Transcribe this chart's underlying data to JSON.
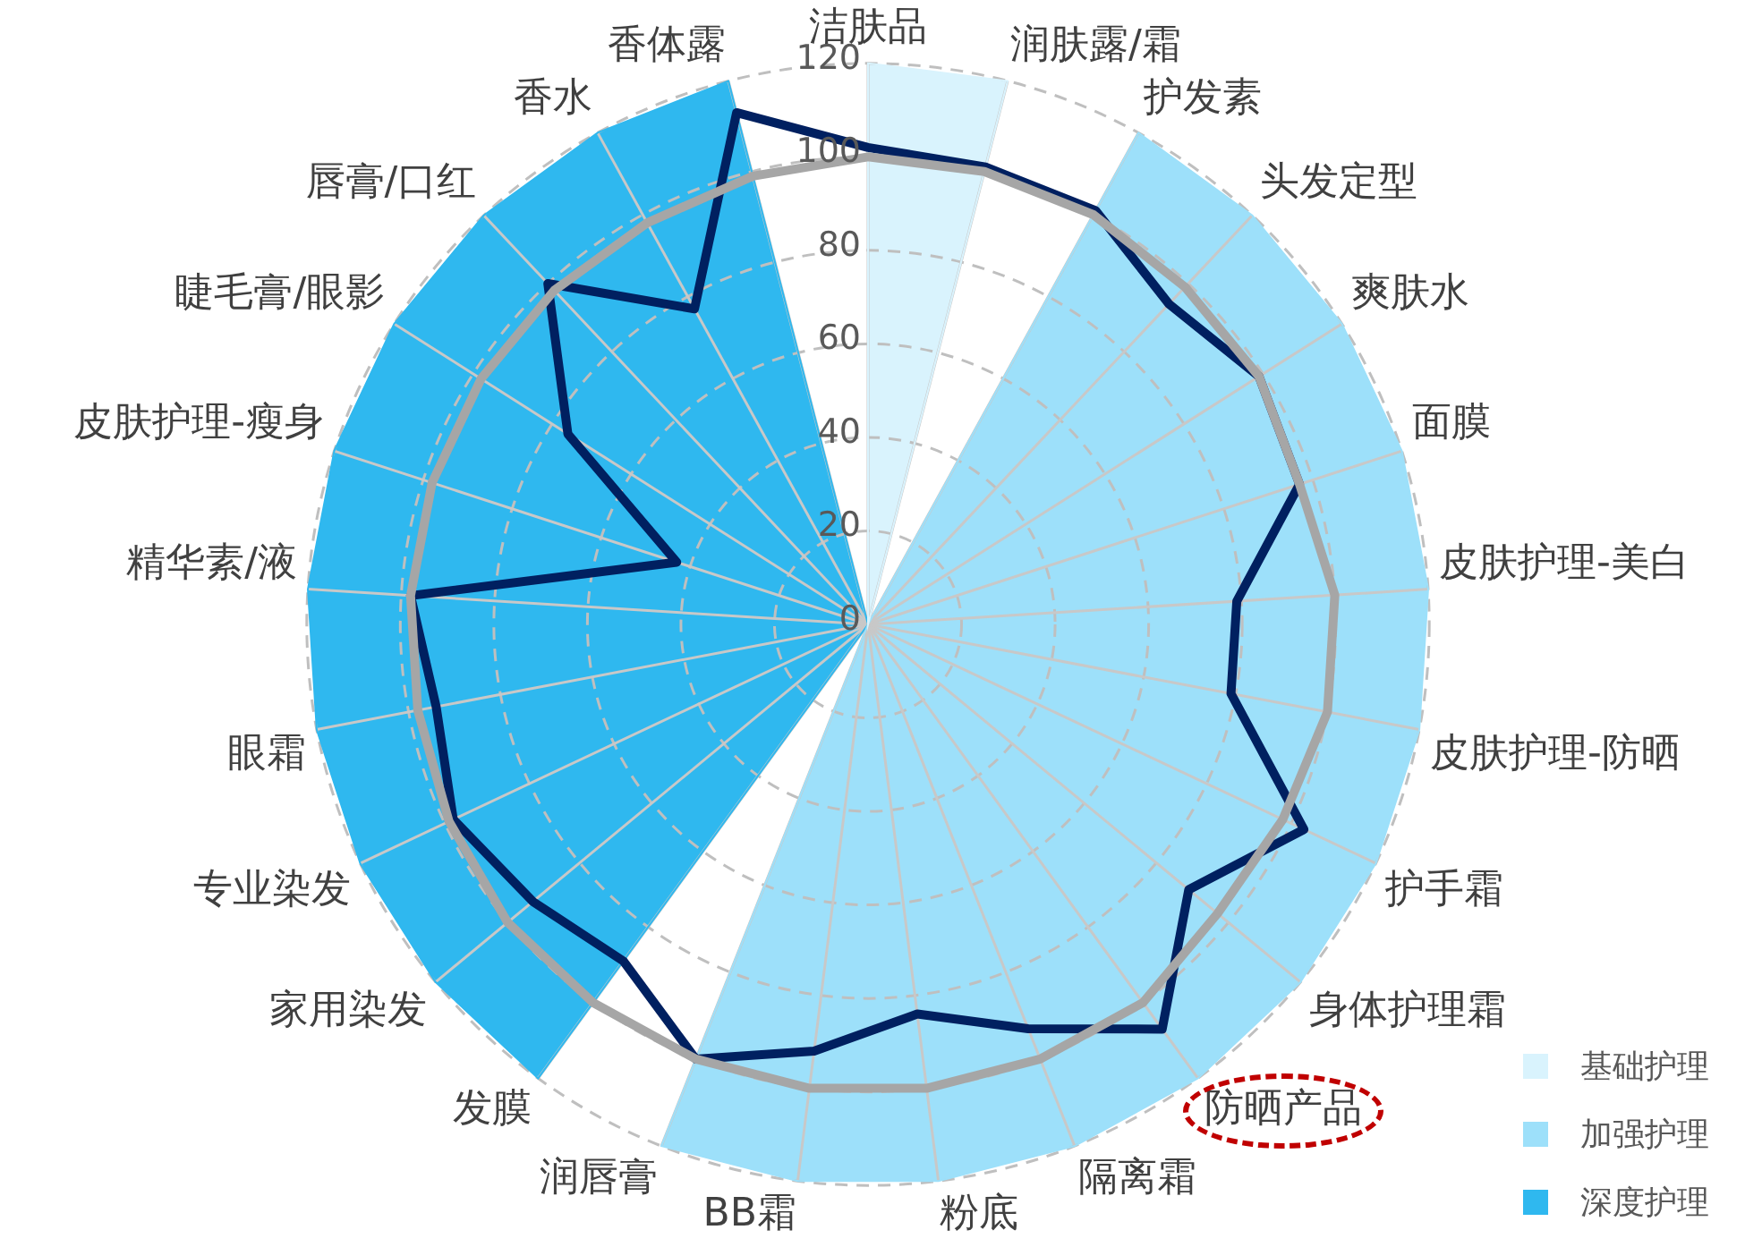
{
  "chart_data": {
    "type": "radar",
    "categories": [
      "洁肤品",
      "润肤露/霜",
      "护发素",
      "头发定型",
      "爽肤水",
      "面膜",
      "皮肤护理-美白",
      "皮肤护理-防晒",
      "护手霜",
      "身体护理霜",
      "防晒产品",
      "隔离霜",
      "粉底",
      "BB霜",
      "润唇膏",
      "发膜",
      "家用染发",
      "专业染发",
      "眼霜",
      "精华素/液",
      "皮肤护理-瘦身",
      "睫毛膏/眼影",
      "唇膏/口红",
      "香水",
      "香体露"
    ],
    "series": [
      {
        "name": "基础护理",
        "color": "#d9f3fd",
        "values": [
          120,
          120,
          0,
          0,
          0,
          0,
          0,
          0,
          0,
          0,
          0,
          0,
          0,
          0,
          0,
          0,
          0,
          0,
          0,
          0,
          0,
          0,
          0,
          0,
          0
        ]
      },
      {
        "name": "加强护理",
        "color": "#9de0fa",
        "values": [
          0,
          0,
          120,
          120,
          120,
          120,
          120,
          120,
          120,
          120,
          120,
          120,
          120,
          120,
          120,
          0,
          0,
          0,
          0,
          0,
          0,
          0,
          0,
          0,
          0
        ]
      },
      {
        "name": "深度护理",
        "color": "#2fb8ef",
        "values": [
          0,
          0,
          0,
          0,
          0,
          0,
          0,
          0,
          0,
          0,
          0,
          0,
          0,
          0,
          0,
          120,
          120,
          120,
          120,
          120,
          120,
          120,
          120,
          120,
          120
        ]
      },
      {
        "line_style": "solid",
        "color": "#a6a6a6",
        "values": [
          100,
          100,
          100,
          99,
          99,
          97,
          100,
          100,
          98,
          97,
          100,
          100,
          100,
          100,
          100,
          100,
          100,
          99,
          98,
          98,
          98,
          98,
          98,
          98,
          99
        ]
      },
      {
        "line_style": "solid",
        "color": "#002060",
        "values": [
          102,
          101,
          101,
          94,
          99,
          97,
          79,
          79,
          103,
          89,
          107,
          93,
          84,
          92,
          100,
          89,
          93,
          98,
          94,
          98,
          43,
          76,
          100,
          77,
          113
        ]
      }
    ],
    "ylim": [
      0,
      120
    ],
    "yticks": [
      0,
      20,
      40,
      60,
      80,
      100,
      120
    ],
    "grid": true,
    "legend": "bottom right",
    "marker": "none"
  }
}
